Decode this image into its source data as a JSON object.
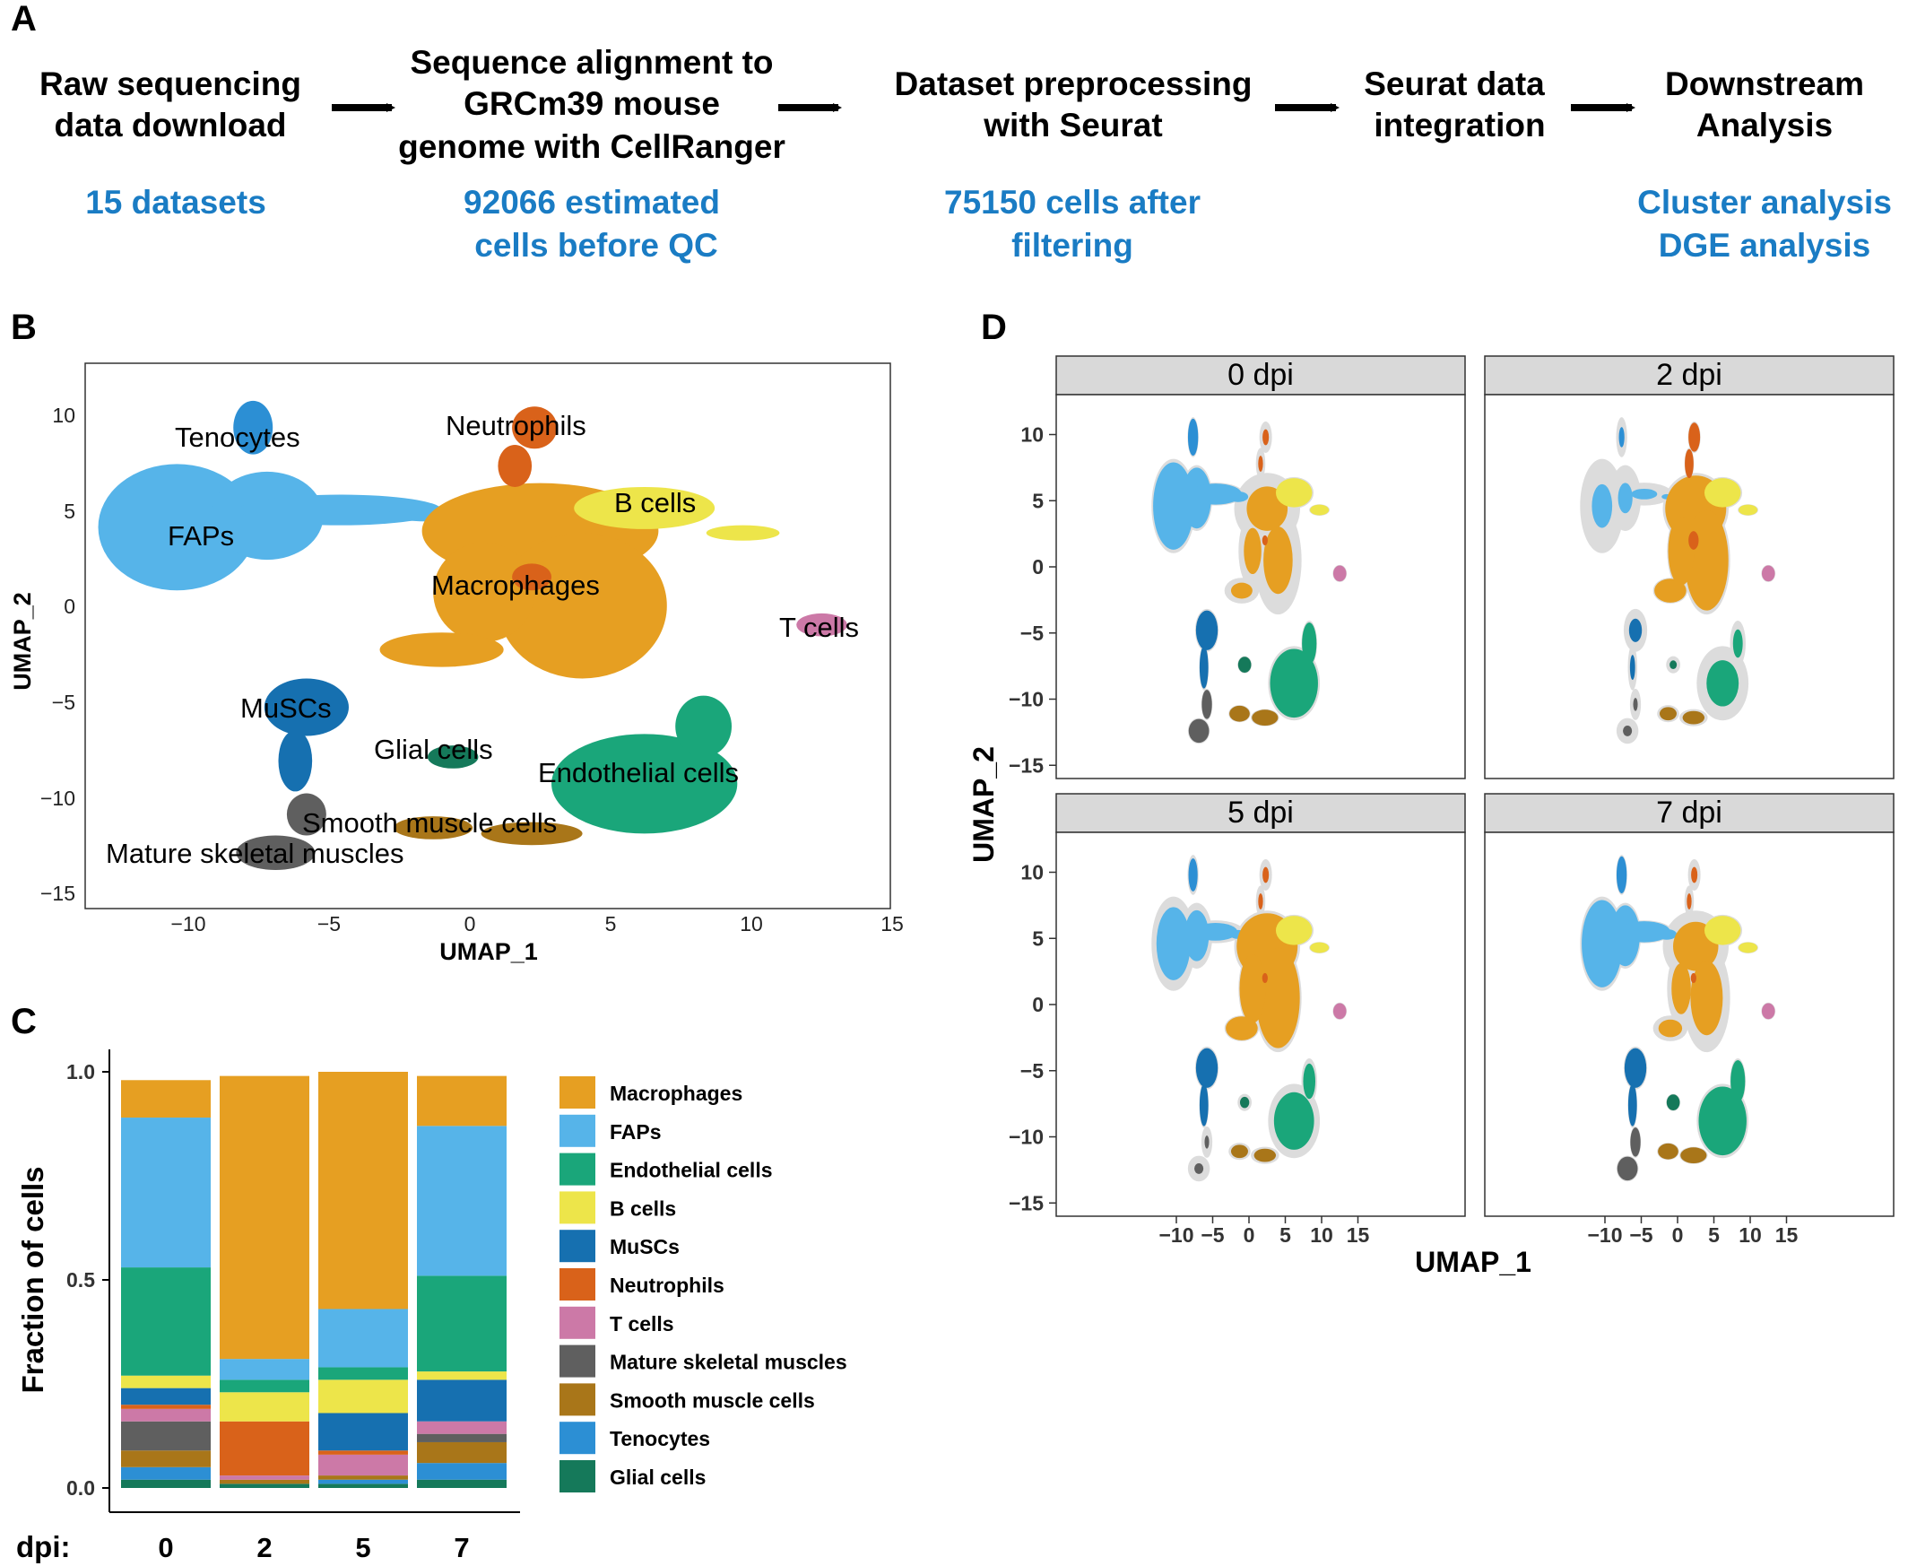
{
  "panel_a": {
    "letter": "A",
    "steps": [
      {
        "lines": [
          "Raw sequencing",
          "data download"
        ],
        "note": [
          "15 datasets"
        ]
      },
      {
        "lines": [
          "Sequence alignment to",
          "GRCm39 mouse",
          "genome with CellRanger"
        ],
        "note": [
          "92066 estimated",
          "cells before QC"
        ]
      },
      {
        "lines": [
          "Dataset preprocessing",
          "with Seurat"
        ],
        "note": [
          "75150 cells after",
          "filtering"
        ]
      },
      {
        "lines": [
          "Seurat data",
          "integration"
        ],
        "note": []
      },
      {
        "lines": [
          "Downstream",
          "Analysis"
        ],
        "note": [
          "Cluster analysis",
          "DGE analysis"
        ]
      }
    ]
  },
  "colors": {
    "Macrophages": "#e69f22",
    "FAPs": "#56b4e9",
    "Endothelial cells": "#1aa67a",
    "B cells": "#ede54a",
    "MuSCs": "#1670b0",
    "Neutrophils": "#d9621a",
    "T cells": "#cc79a7",
    "Mature skeletal muscles": "#5f5f5f",
    "Smooth muscle cells": "#a97619",
    "Tenocytes": "#2c8fd4",
    "Glial cells": "#15795a"
  },
  "panel_b": {
    "letter": "B",
    "xlabel": "UMAP_1",
    "ylabel": "UMAP_2",
    "xticks": [
      "−10",
      "−5",
      "0",
      "5",
      "10",
      "15"
    ],
    "yticks": [
      "10",
      "5",
      "0",
      "−5",
      "−10",
      "−15"
    ],
    "cluster_labels": [
      "Tenocytes",
      "Neutrophils",
      "FAPs",
      "B cells",
      "Macrophages",
      "T cells",
      "MuSCs",
      "Glial cells",
      "Endothelial cells",
      "Smooth muscle cells",
      "Mature skeletal muscles"
    ]
  },
  "panel_c": {
    "letter": "C",
    "ylabel": "Fraction of cells",
    "xprefix": "dpi:",
    "yticks": [
      "1.0",
      "0.5",
      "0.0"
    ]
  },
  "panel_d": {
    "letter": "D",
    "xlabel": "UMAP_1",
    "ylabel": "UMAP_2",
    "facets": [
      "0 dpi",
      "2 dpi",
      "5 dpi",
      "7 dpi"
    ],
    "xticks": [
      "−10",
      "−5",
      "0",
      "5",
      "10",
      "15"
    ],
    "yticks": [
      "10",
      "5",
      "0",
      "−5",
      "−10",
      "−15"
    ]
  },
  "chart_data": {
    "type": "bar",
    "stacked": true,
    "categories": [
      "0",
      "2",
      "5",
      "7"
    ],
    "ylabel": "Fraction of cells",
    "ylim": [
      0,
      1
    ],
    "legend_position": "right",
    "series": [
      {
        "name": "Glial cells",
        "values": [
          0.02,
          0.01,
          0.01,
          0.02
        ]
      },
      {
        "name": "Tenocytes",
        "values": [
          0.03,
          0.0,
          0.01,
          0.04
        ]
      },
      {
        "name": "Smooth muscle cells",
        "values": [
          0.04,
          0.01,
          0.01,
          0.05
        ]
      },
      {
        "name": "Mature skeletal muscles",
        "values": [
          0.07,
          0.0,
          0.0,
          0.02
        ]
      },
      {
        "name": "T cells",
        "values": [
          0.03,
          0.01,
          0.05,
          0.03
        ]
      },
      {
        "name": "Neutrophils",
        "values": [
          0.01,
          0.13,
          0.01,
          0.0
        ]
      },
      {
        "name": "MuSCs",
        "values": [
          0.04,
          0.0,
          0.09,
          0.1
        ]
      },
      {
        "name": "B cells",
        "values": [
          0.03,
          0.07,
          0.08,
          0.02
        ]
      },
      {
        "name": "Endothelial cells",
        "values": [
          0.26,
          0.03,
          0.03,
          0.23
        ]
      },
      {
        "name": "FAPs",
        "values": [
          0.36,
          0.05,
          0.14,
          0.36
        ]
      },
      {
        "name": "Macrophages",
        "values": [
          0.09,
          0.68,
          0.57,
          0.12
        ]
      }
    ]
  }
}
